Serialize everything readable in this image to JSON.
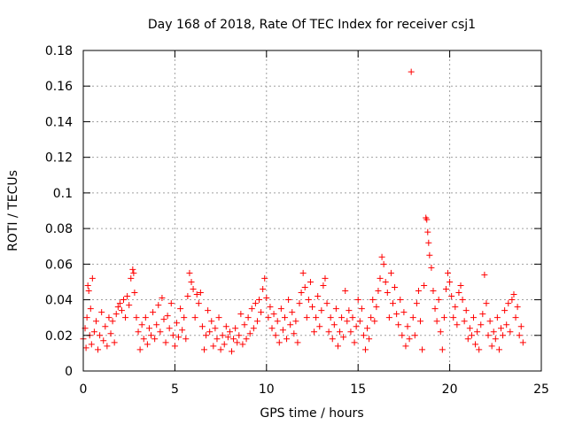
{
  "chart_data": {
    "type": "scatter",
    "title": "Day 168 of 2018, Rate Of TEC Index for receiver csj1",
    "xlabel": "GPS time / hours",
    "ylabel": "ROTI / TECUs",
    "xlim": [
      0,
      25
    ],
    "ylim": [
      0,
      0.18
    ],
    "xticks": [
      0,
      5,
      10,
      15,
      20,
      25
    ],
    "xtick_labels": [
      "0",
      "5",
      "10",
      "15",
      "20",
      "25"
    ],
    "yticks": [
      0,
      0.02,
      0.04,
      0.06,
      0.08,
      0.1,
      0.12,
      0.14,
      0.16,
      0.18
    ],
    "ytick_labels": [
      "0",
      "0.02",
      "0.04",
      "0.06",
      "0.08",
      "0.1",
      "0.12",
      "0.14",
      "0.16",
      "0.18"
    ],
    "grid": true,
    "marker": "plus",
    "color": "#ff0000",
    "series": [
      {
        "name": "ROTI",
        "points": [
          [
            0.0,
            0.018
          ],
          [
            0.1,
            0.024
          ],
          [
            0.15,
            0.013
          ],
          [
            0.2,
            0.03
          ],
          [
            0.25,
            0.048
          ],
          [
            0.3,
            0.045
          ],
          [
            0.35,
            0.02
          ],
          [
            0.4,
            0.035
          ],
          [
            0.45,
            0.015
          ],
          [
            0.5,
            0.052
          ],
          [
            0.6,
            0.022
          ],
          [
            0.7,
            0.028
          ],
          [
            0.8,
            0.012
          ],
          [
            0.9,
            0.02
          ],
          [
            1.0,
            0.033
          ],
          [
            1.1,
            0.017
          ],
          [
            1.2,
            0.025
          ],
          [
            1.3,
            0.014
          ],
          [
            1.4,
            0.03
          ],
          [
            1.5,
            0.021
          ],
          [
            1.6,
            0.028
          ],
          [
            1.7,
            0.016
          ],
          [
            1.8,
            0.032
          ],
          [
            1.9,
            0.036
          ],
          [
            2.0,
            0.038
          ],
          [
            2.1,
            0.034
          ],
          [
            2.2,
            0.04
          ],
          [
            2.3,
            0.03
          ],
          [
            2.4,
            0.042
          ],
          [
            2.5,
            0.037
          ],
          [
            2.6,
            0.052
          ],
          [
            2.7,
            0.057
          ],
          [
            2.75,
            0.055
          ],
          [
            2.8,
            0.044
          ],
          [
            2.9,
            0.03
          ],
          [
            3.0,
            0.022
          ],
          [
            3.1,
            0.012
          ],
          [
            3.2,
            0.026
          ],
          [
            3.3,
            0.018
          ],
          [
            3.4,
            0.03
          ],
          [
            3.5,
            0.015
          ],
          [
            3.6,
            0.024
          ],
          [
            3.7,
            0.02
          ],
          [
            3.8,
            0.033
          ],
          [
            3.9,
            0.018
          ],
          [
            4.0,
            0.026
          ],
          [
            4.1,
            0.037
          ],
          [
            4.2,
            0.022
          ],
          [
            4.3,
            0.041
          ],
          [
            4.4,
            0.029
          ],
          [
            4.5,
            0.016
          ],
          [
            4.6,
            0.031
          ],
          [
            4.7,
            0.024
          ],
          [
            4.8,
            0.038
          ],
          [
            4.9,
            0.02
          ],
          [
            5.0,
            0.014
          ],
          [
            5.1,
            0.027
          ],
          [
            5.2,
            0.019
          ],
          [
            5.3,
            0.035
          ],
          [
            5.4,
            0.023
          ],
          [
            5.5,
            0.03
          ],
          [
            5.6,
            0.018
          ],
          [
            5.7,
            0.042
          ],
          [
            5.8,
            0.055
          ],
          [
            5.9,
            0.05
          ],
          [
            6.0,
            0.046
          ],
          [
            6.1,
            0.03
          ],
          [
            6.2,
            0.043
          ],
          [
            6.3,
            0.038
          ],
          [
            6.4,
            0.044
          ],
          [
            6.5,
            0.025
          ],
          [
            6.6,
            0.012
          ],
          [
            6.7,
            0.02
          ],
          [
            6.8,
            0.034
          ],
          [
            6.9,
            0.022
          ],
          [
            7.0,
            0.028
          ],
          [
            7.1,
            0.014
          ],
          [
            7.2,
            0.024
          ],
          [
            7.3,
            0.018
          ],
          [
            7.4,
            0.03
          ],
          [
            7.5,
            0.012
          ],
          [
            7.6,
            0.02
          ],
          [
            7.7,
            0.015
          ],
          [
            7.8,
            0.025
          ],
          [
            7.9,
            0.019
          ],
          [
            8.0,
            0.022
          ],
          [
            8.1,
            0.011
          ],
          [
            8.2,
            0.018
          ],
          [
            8.3,
            0.024
          ],
          [
            8.4,
            0.016
          ],
          [
            8.5,
            0.02
          ],
          [
            8.6,
            0.032
          ],
          [
            8.7,
            0.015
          ],
          [
            8.8,
            0.026
          ],
          [
            8.9,
            0.018
          ],
          [
            9.0,
            0.03
          ],
          [
            9.1,
            0.021
          ],
          [
            9.2,
            0.035
          ],
          [
            9.3,
            0.024
          ],
          [
            9.4,
            0.038
          ],
          [
            9.5,
            0.028
          ],
          [
            9.6,
            0.04
          ],
          [
            9.7,
            0.033
          ],
          [
            9.8,
            0.046
          ],
          [
            9.9,
            0.052
          ],
          [
            10.0,
            0.041
          ],
          [
            10.1,
            0.03
          ],
          [
            10.2,
            0.036
          ],
          [
            10.3,
            0.024
          ],
          [
            10.4,
            0.032
          ],
          [
            10.5,
            0.02
          ],
          [
            10.6,
            0.028
          ],
          [
            10.7,
            0.016
          ],
          [
            10.8,
            0.035
          ],
          [
            10.9,
            0.023
          ],
          [
            11.0,
            0.03
          ],
          [
            11.1,
            0.018
          ],
          [
            11.2,
            0.04
          ],
          [
            11.3,
            0.026
          ],
          [
            11.4,
            0.033
          ],
          [
            11.5,
            0.021
          ],
          [
            11.6,
            0.028
          ],
          [
            11.7,
            0.016
          ],
          [
            11.8,
            0.038
          ],
          [
            11.9,
            0.044
          ],
          [
            12.0,
            0.055
          ],
          [
            12.1,
            0.047
          ],
          [
            12.2,
            0.03
          ],
          [
            12.3,
            0.04
          ],
          [
            12.4,
            0.05
          ],
          [
            12.5,
            0.036
          ],
          [
            12.6,
            0.022
          ],
          [
            12.7,
            0.03
          ],
          [
            12.8,
            0.042
          ],
          [
            12.9,
            0.025
          ],
          [
            13.0,
            0.034
          ],
          [
            13.1,
            0.048
          ],
          [
            13.2,
            0.052
          ],
          [
            13.3,
            0.038
          ],
          [
            13.4,
            0.022
          ],
          [
            13.5,
            0.03
          ],
          [
            13.6,
            0.018
          ],
          [
            13.7,
            0.026
          ],
          [
            13.8,
            0.035
          ],
          [
            13.9,
            0.014
          ],
          [
            14.0,
            0.022
          ],
          [
            14.1,
            0.03
          ],
          [
            14.2,
            0.019
          ],
          [
            14.3,
            0.045
          ],
          [
            14.4,
            0.028
          ],
          [
            14.5,
            0.034
          ],
          [
            14.6,
            0.022
          ],
          [
            14.7,
            0.03
          ],
          [
            14.8,
            0.016
          ],
          [
            14.9,
            0.025
          ],
          [
            15.0,
            0.04
          ],
          [
            15.1,
            0.028
          ],
          [
            15.2,
            0.035
          ],
          [
            15.3,
            0.02
          ],
          [
            15.4,
            0.012
          ],
          [
            15.5,
            0.024
          ],
          [
            15.6,
            0.018
          ],
          [
            15.7,
            0.03
          ],
          [
            15.8,
            0.04
          ],
          [
            15.9,
            0.028
          ],
          [
            16.0,
            0.036
          ],
          [
            16.1,
            0.045
          ],
          [
            16.2,
            0.052
          ],
          [
            16.3,
            0.064
          ],
          [
            16.4,
            0.06
          ],
          [
            16.5,
            0.05
          ],
          [
            16.6,
            0.044
          ],
          [
            16.7,
            0.03
          ],
          [
            16.8,
            0.055
          ],
          [
            16.9,
            0.038
          ],
          [
            17.0,
            0.047
          ],
          [
            17.1,
            0.032
          ],
          [
            17.2,
            0.026
          ],
          [
            17.3,
            0.04
          ],
          [
            17.4,
            0.02
          ],
          [
            17.5,
            0.033
          ],
          [
            17.6,
            0.014
          ],
          [
            17.7,
            0.025
          ],
          [
            17.8,
            0.018
          ],
          [
            17.9,
            0.168
          ],
          [
            18.0,
            0.03
          ],
          [
            18.1,
            0.02
          ],
          [
            18.2,
            0.038
          ],
          [
            18.3,
            0.045
          ],
          [
            18.4,
            0.028
          ],
          [
            18.5,
            0.012
          ],
          [
            18.6,
            0.048
          ],
          [
            18.7,
            0.086
          ],
          [
            18.75,
            0.085
          ],
          [
            18.8,
            0.078
          ],
          [
            18.85,
            0.072
          ],
          [
            18.9,
            0.065
          ],
          [
            19.0,
            0.058
          ],
          [
            19.1,
            0.045
          ],
          [
            19.2,
            0.035
          ],
          [
            19.3,
            0.028
          ],
          [
            19.4,
            0.04
          ],
          [
            19.5,
            0.022
          ],
          [
            19.6,
            0.012
          ],
          [
            19.7,
            0.03
          ],
          [
            19.8,
            0.046
          ],
          [
            19.9,
            0.055
          ],
          [
            20.0,
            0.05
          ],
          [
            20.1,
            0.042
          ],
          [
            20.2,
            0.03
          ],
          [
            20.3,
            0.036
          ],
          [
            20.4,
            0.026
          ],
          [
            20.5,
            0.044
          ],
          [
            20.6,
            0.048
          ],
          [
            20.7,
            0.04
          ],
          [
            20.8,
            0.028
          ],
          [
            20.9,
            0.034
          ],
          [
            21.0,
            0.018
          ],
          [
            21.1,
            0.024
          ],
          [
            21.2,
            0.02
          ],
          [
            21.3,
            0.03
          ],
          [
            21.4,
            0.015
          ],
          [
            21.5,
            0.022
          ],
          [
            21.6,
            0.012
          ],
          [
            21.7,
            0.026
          ],
          [
            21.8,
            0.032
          ],
          [
            21.9,
            0.054
          ],
          [
            22.0,
            0.038
          ],
          [
            22.1,
            0.02
          ],
          [
            22.2,
            0.028
          ],
          [
            22.3,
            0.014
          ],
          [
            22.4,
            0.022
          ],
          [
            22.5,
            0.018
          ],
          [
            22.6,
            0.03
          ],
          [
            22.7,
            0.012
          ],
          [
            22.8,
            0.024
          ],
          [
            22.9,
            0.02
          ],
          [
            23.0,
            0.034
          ],
          [
            23.1,
            0.026
          ],
          [
            23.2,
            0.038
          ],
          [
            23.3,
            0.022
          ],
          [
            23.4,
            0.04
          ],
          [
            23.5,
            0.043
          ],
          [
            23.6,
            0.03
          ],
          [
            23.7,
            0.036
          ],
          [
            23.8,
            0.02
          ],
          [
            23.9,
            0.025
          ],
          [
            24.0,
            0.016
          ]
        ]
      }
    ]
  }
}
